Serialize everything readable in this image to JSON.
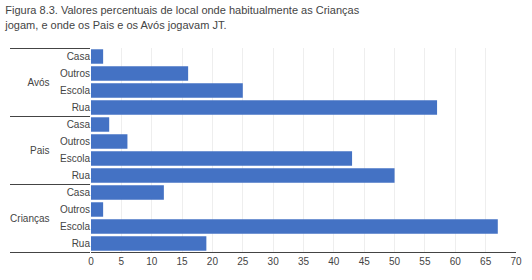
{
  "chart_data": {
    "type": "bar",
    "orientation": "horizontal",
    "title": "Figura 8.3. Valores percentuais de local onde habitualmente as Crianças\njogam, e onde os Pais e os Avós jogavam JT.",
    "categories": [
      [
        "Avós",
        "Casa"
      ],
      [
        "Avós",
        "Outros"
      ],
      [
        "Avós",
        "Escola"
      ],
      [
        "Avós",
        "Rua"
      ],
      [
        "Pais",
        "Casa"
      ],
      [
        "Pais",
        "Outros"
      ],
      [
        "Pais",
        "Escola"
      ],
      [
        "Pais",
        "Rua"
      ],
      [
        "Crianças",
        "Outros"
      ],
      [
        "Crianças",
        "Casa"
      ],
      [
        "Crianças",
        "Rua"
      ],
      [
        "Crianças",
        "Escola"
      ]
    ],
    "values": [
      2,
      16,
      25,
      57,
      3,
      6,
      43,
      50,
      2,
      12,
      19,
      67
    ],
    "color": "#4472C4",
    "xlim": [
      0,
      70
    ],
    "xticks": [
      0,
      5,
      10,
      15,
      20,
      25,
      30,
      35,
      40,
      45,
      50,
      55,
      60,
      65,
      70
    ],
    "grid": true
  }
}
